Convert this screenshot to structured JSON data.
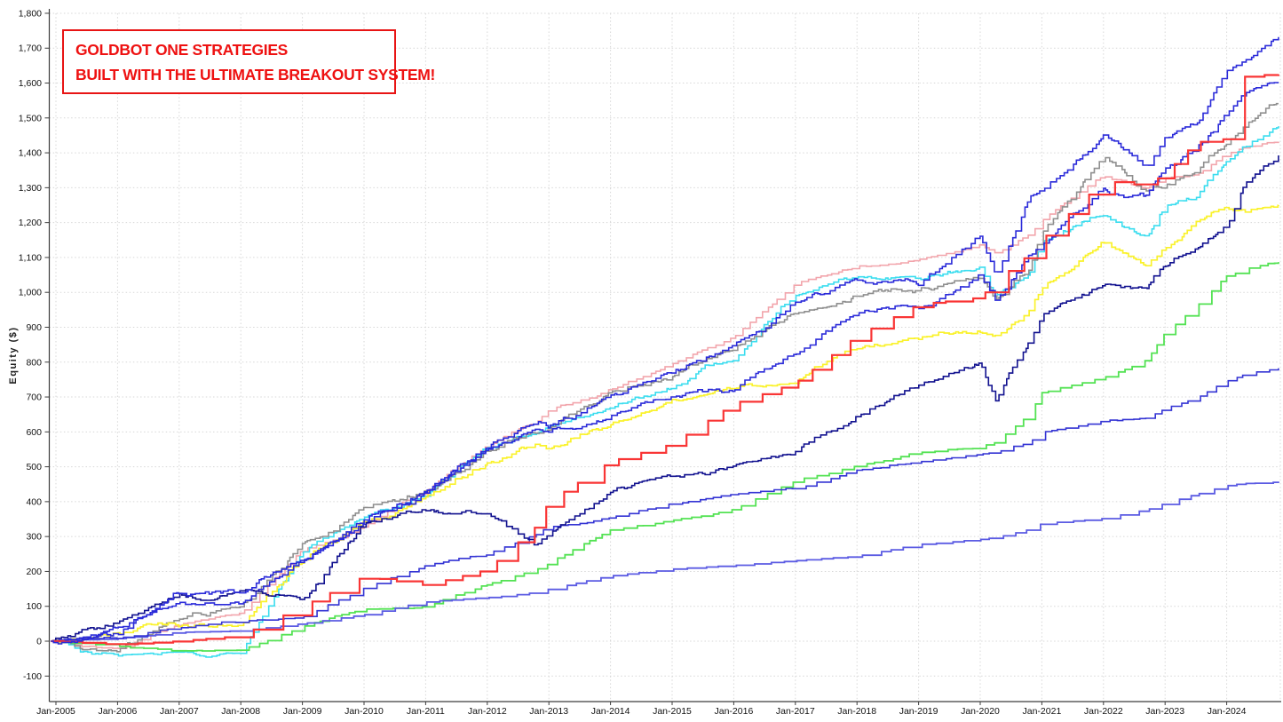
{
  "annotation": {
    "line1": "GOLDBOT ONE STRATEGIES",
    "line2": "BUILT WITH THE ULTIMATE BREAKOUT SYSTEM!",
    "border_color": "#e81414",
    "text_color": "#ee1111"
  },
  "chart_data": {
    "type": "line",
    "title": "",
    "xlabel": "",
    "ylabel": "Equity ($)",
    "legend": "none",
    "grid": "dotted",
    "grid_color": "#d7d7d7",
    "background": "#ffffff",
    "ylim": [
      -173,
      1815
    ],
    "xlim_years": [
      2004.9,
      2024.9
    ],
    "y_ticks": [
      -100,
      0,
      100,
      200,
      300,
      400,
      500,
      600,
      700,
      800,
      900,
      1000,
      1100,
      1200,
      1300,
      1400,
      1500,
      1600,
      1700,
      1800
    ],
    "y_tick_labels": [
      "-100",
      "0",
      "100",
      "200",
      "300",
      "400",
      "500",
      "600",
      "700",
      "800",
      "900",
      "1,000",
      "1,100",
      "1,200",
      "1,300",
      "1,400",
      "1,500",
      "1,600",
      "1,700",
      "1,800"
    ],
    "x_tick_labels": [
      "Jan-2005",
      "Jan-2006",
      "Jan-2007",
      "Jan-2008",
      "Jan-2009",
      "Jan-2010",
      "Jan-2011",
      "Jan-2012",
      "Jan-2013",
      "Jan-2014",
      "Jan-2015",
      "Jan-2016",
      "Jan-2017",
      "Jan-2018",
      "Jan-2019",
      "Jan-2020",
      "Jan-2021",
      "Jan-2022",
      "Jan-2023",
      "Jan-2024"
    ],
    "x": [
      2004.92,
      2006,
      2007,
      2008,
      2009,
      2010,
      2011,
      2012,
      2012.8,
      2013,
      2014,
      2015,
      2016,
      2017,
      2018,
      2019,
      2020,
      2020.25,
      2020.8,
      2021,
      2022,
      2022.7,
      2023,
      2023.5,
      2024,
      2024.3,
      2024.84
    ],
    "series": [
      {
        "name": "pink-line",
        "color": "#f2a5ac",
        "width": 1.6,
        "texture": "wavy",
        "values": [
          0,
          -25,
          40,
          75,
          255,
          330,
          430,
          560,
          630,
          660,
          720,
          790,
          865,
          1030,
          1080,
          1095,
          1130,
          1105,
          1160,
          1200,
          1330,
          1290,
          1320,
          1330,
          1400,
          1420,
          1440
        ]
      },
      {
        "name": "cyan-line",
        "color": "#3bddef",
        "width": 1.6,
        "texture": "jagged",
        "values": [
          0,
          -55,
          -45,
          -50,
          250,
          340,
          420,
          555,
          610,
          630,
          680,
          740,
          820,
          1005,
          1060,
          1040,
          1075,
          995,
          1060,
          1160,
          1230,
          1170,
          1260,
          1285,
          1390,
          1430,
          1490
        ]
      },
      {
        "name": "gray-line",
        "color": "#8f8f8f",
        "width": 1.6,
        "texture": "jagged",
        "values": [
          0,
          -20,
          60,
          112,
          265,
          370,
          440,
          545,
          590,
          610,
          700,
          760,
          850,
          955,
          990,
          1000,
          1057,
          985,
          1080,
          1175,
          1375,
          1290,
          1310,
          1360,
          1440,
          1490,
          1540
        ]
      },
      {
        "name": "yellow-line",
        "color": "#faf22c",
        "width": 1.7,
        "texture": "jagged",
        "values": [
          0,
          25,
          45,
          60,
          240,
          350,
          405,
          520,
          565,
          560,
          630,
          700,
          740,
          745,
          840,
          878,
          900,
          880,
          950,
          1016,
          1150,
          1090,
          1140,
          1200,
          1230,
          1220,
          1235
        ]
      },
      {
        "name": "green-line",
        "color": "#53e253",
        "width": 1.8,
        "texture": "soft",
        "values": [
          0,
          -15,
          -25,
          -30,
          40,
          90,
          102,
          165,
          205,
          220,
          325,
          348,
          380,
          455,
          500,
          545,
          560,
          575,
          655,
          718,
          760,
          810,
          890,
          960,
          1050,
          1070,
          1085
        ]
      },
      {
        "name": "periwinkle-line",
        "color": "#5b5be3",
        "width": 1.8,
        "texture": "smooth",
        "values": [
          0,
          8,
          25,
          28,
          48,
          74,
          111,
          124,
          140,
          150,
          185,
          205,
          215,
          230,
          242,
          277,
          290,
          295,
          320,
          336,
          350,
          375,
          395,
          420,
          445,
          452,
          458
        ]
      },
      {
        "name": "royal-blue-line-c",
        "color": "#3434d4",
        "width": 1.6,
        "texture": "soft",
        "values": [
          0,
          10,
          40,
          60,
          70,
          150,
          215,
          250,
          310,
          330,
          355,
          395,
          415,
          435,
          490,
          520,
          540,
          545,
          575,
          605,
          635,
          645,
          672,
          700,
          745,
          770,
          780
        ]
      },
      {
        "name": "royal-blue-line-b",
        "color": "#2b2bd9",
        "width": 1.6,
        "texture": "jagged",
        "values": [
          0,
          30,
          120,
          120,
          245,
          330,
          415,
          535,
          595,
          600,
          655,
          705,
          715,
          820,
          930,
          955,
          1040,
          960,
          1100,
          1125,
          1295,
          1270,
          1340,
          1400,
          1500,
          1560,
          1595
        ]
      },
      {
        "name": "navy-line",
        "color": "#11118f",
        "width": 1.6,
        "texture": "jagged",
        "values": [
          0,
          40,
          130,
          135,
          110,
          330,
          380,
          380,
          272,
          295,
          420,
          465,
          490,
          535,
          645,
          730,
          800,
          700,
          855,
          930,
          1010,
          1005,
          1075,
          1130,
          1180,
          1300,
          1385
        ]
      },
      {
        "name": "red-line",
        "color": "#f93535",
        "width": 2.2,
        "texture": "steps",
        "values": [
          0,
          -10,
          0,
          15,
          100,
          185,
          160,
          205,
          330,
          400,
          515,
          565,
          680,
          740,
          875,
          965,
          985,
          1030,
          1110,
          1150,
          1320,
          1305,
          1340,
          1430,
          1440,
          1620,
          1625
        ]
      },
      {
        "name": "royal-blue-line-a",
        "color": "#2b2bd9",
        "width": 1.6,
        "texture": "jagged",
        "values": [
          0,
          20,
          140,
          130,
          235,
          345,
          430,
          560,
          615,
          610,
          690,
          760,
          835,
          985,
          1040,
          1035,
          1175,
          1060,
          1280,
          1305,
          1450,
          1340,
          1430,
          1475,
          1620,
          1650,
          1720
        ]
      }
    ]
  }
}
